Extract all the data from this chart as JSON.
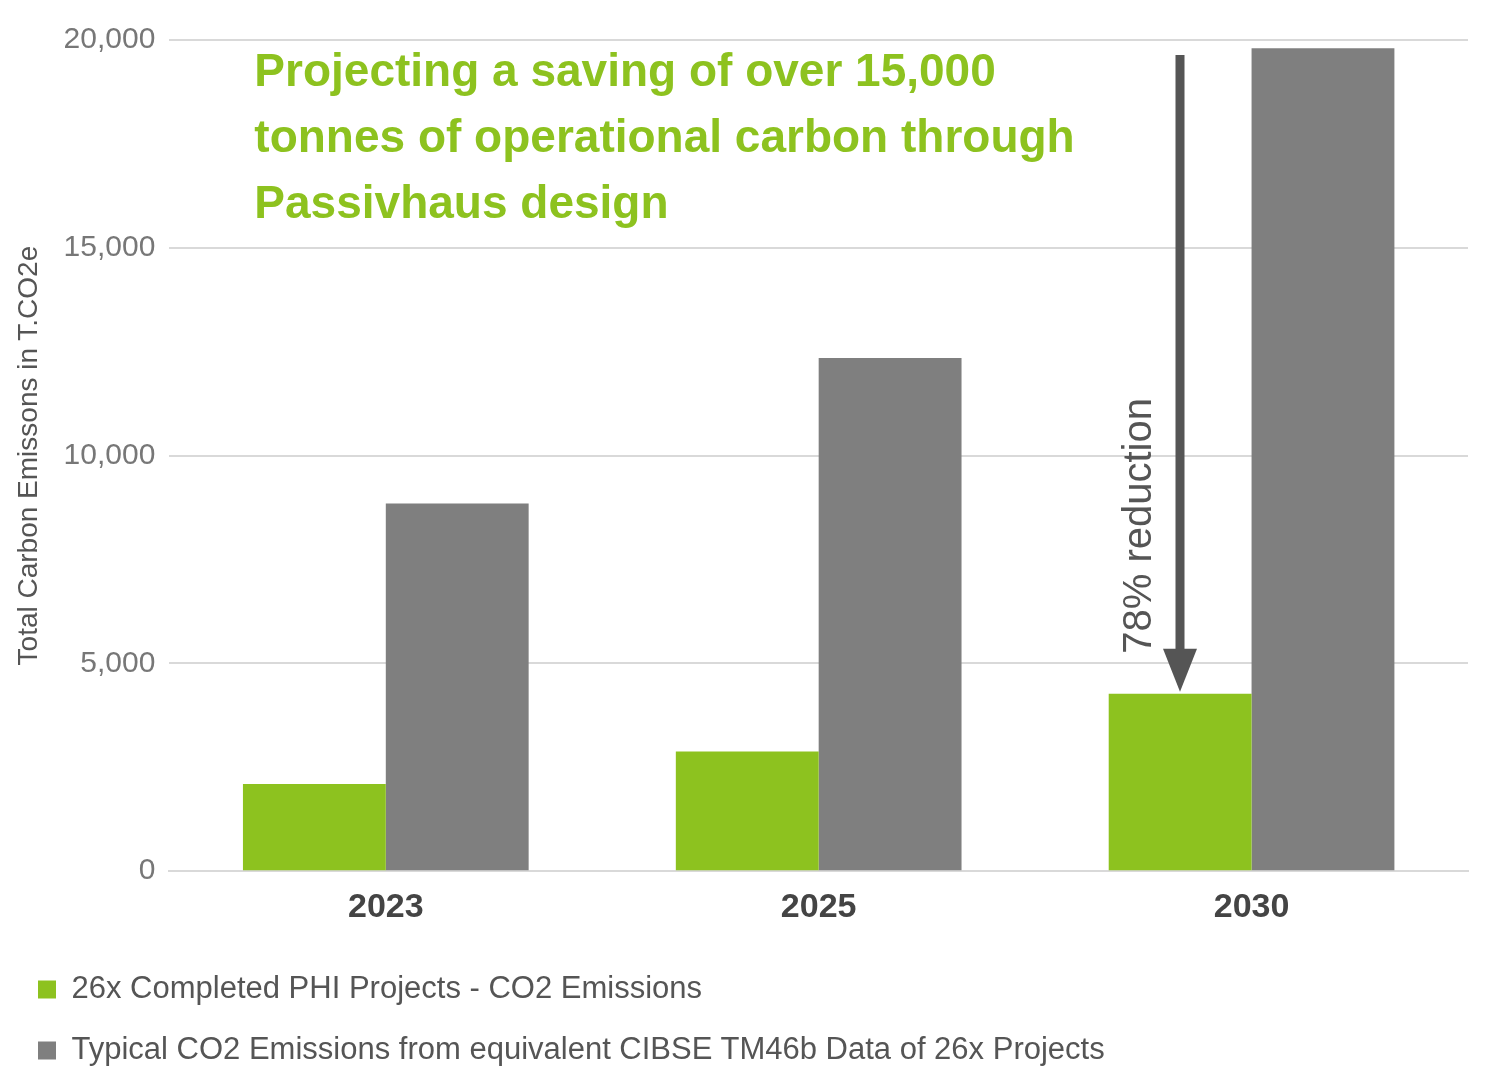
{
  "chart_data": {
    "type": "bar",
    "title": "Projecting a saving of over 15,000 tonnes of operational carbon through Passivhaus design",
    "ylabel": "Total Carbon Emissons in T.CO2e",
    "categories": [
      "2023",
      "2025",
      "2030"
    ],
    "series": [
      {
        "name": "26x Completed PHI Projects - CO2 Emissions",
        "color": "#8dc21f",
        "values": [
          2100,
          2880,
          4270
        ]
      },
      {
        "name": "Typical CO2 Emissions from equivalent CIBSE TM46b Data of 26x Projects",
        "color": "#7f7f7f",
        "values": [
          8850,
          12350,
          19800
        ]
      }
    ],
    "ylim": [
      0,
      20000
    ],
    "yticks": [
      0,
      {
        "value": 5000,
        "label": "5,000"
      },
      {
        "value": 10000,
        "label": "10,000"
      },
      {
        "value": 15000,
        "label": "15,000"
      },
      {
        "value": 20000,
        "label": "20,000"
      }
    ],
    "grid": "y",
    "legend": "bottom",
    "annotations": [
      {
        "text": "78% reduction",
        "x": "2030",
        "y": 4270
      }
    ]
  }
}
